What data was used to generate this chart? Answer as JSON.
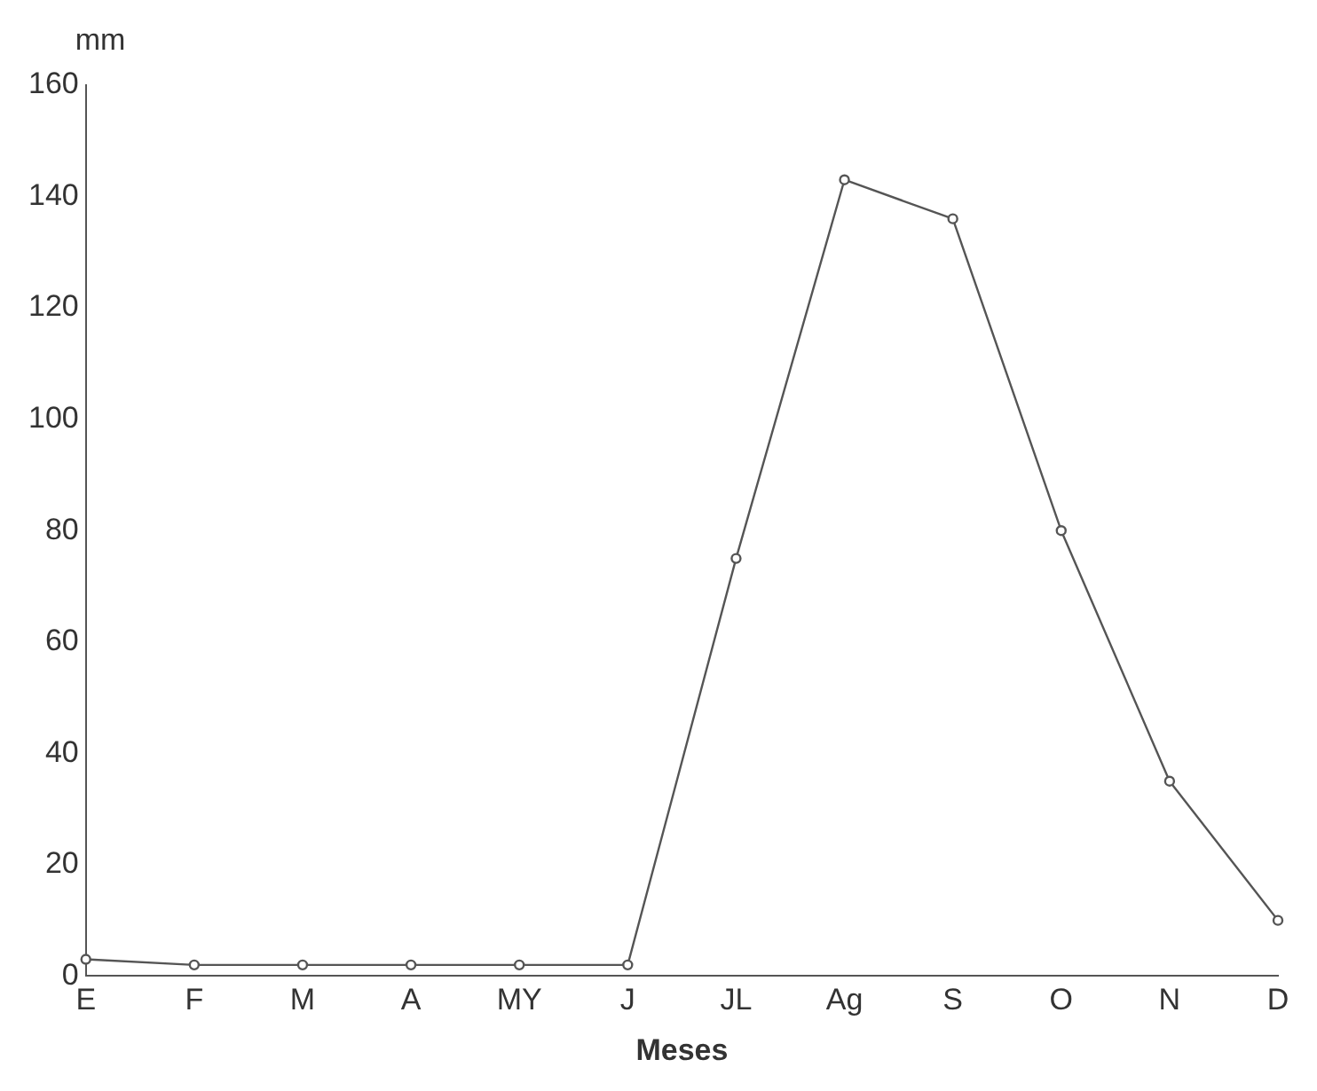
{
  "chart_data": {
    "type": "line",
    "xlabel": "Meses",
    "ylabel": "mm",
    "categories": [
      "E",
      "F",
      "M",
      "A",
      "MY",
      "J",
      "JL",
      "Ag",
      "S",
      "O",
      "N",
      "D"
    ],
    "series": [
      {
        "color": "#555555",
        "values": [
          3,
          2,
          2,
          2,
          2,
          2,
          75,
          143,
          136,
          80,
          35,
          10
        ]
      }
    ],
    "ylim": [
      0,
      160
    ],
    "yticks": [
      0,
      20,
      40,
      60,
      80,
      100,
      120,
      140,
      160
    ],
    "grid": false,
    "legend": false,
    "marker": "circle",
    "line_style": "solid"
  }
}
